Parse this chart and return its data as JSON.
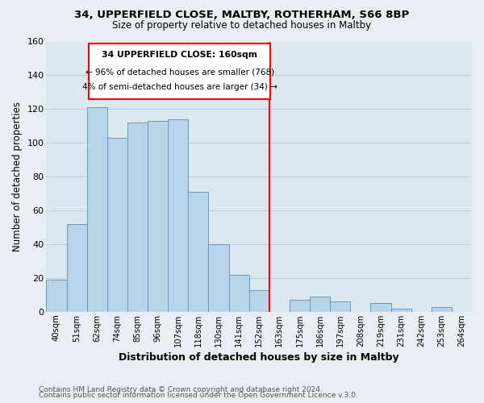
{
  "title1": "34, UPPERFIELD CLOSE, MALTBY, ROTHERHAM, S66 8BP",
  "title2": "Size of property relative to detached houses in Maltby",
  "xlabel": "Distribution of detached houses by size in Maltby",
  "ylabel": "Number of detached properties",
  "bin_labels": [
    "40sqm",
    "51sqm",
    "62sqm",
    "74sqm",
    "85sqm",
    "96sqm",
    "107sqm",
    "118sqm",
    "130sqm",
    "141sqm",
    "152sqm",
    "163sqm",
    "175sqm",
    "186sqm",
    "197sqm",
    "208sqm",
    "219sqm",
    "231sqm",
    "242sqm",
    "253sqm",
    "264sqm"
  ],
  "bar_heights": [
    19,
    52,
    121,
    103,
    112,
    113,
    114,
    71,
    40,
    22,
    13,
    0,
    7,
    9,
    6,
    0,
    5,
    2,
    0,
    3,
    0
  ],
  "bar_color": "#b8d4e8",
  "bar_edge_color": "#6699bb",
  "vline_idx": 11,
  "vline_color": "red",
  "annotation_title": "34 UPPERFIELD CLOSE: 160sqm",
  "annotation_line1": "← 96% of detached houses are smaller (768)",
  "annotation_line2": "4% of semi-detached houses are larger (34) →",
  "ylim": [
    0,
    160
  ],
  "yticks": [
    0,
    20,
    40,
    60,
    80,
    100,
    120,
    140,
    160
  ],
  "footer1": "Contains HM Land Registry data © Crown copyright and database right 2024.",
  "footer2": "Contains public sector information licensed under the Open Government Licence v.3.0.",
  "bg_color": "#e8eef4",
  "plot_bg_color": "#dce8f0",
  "grid_color": "#c0ccd8"
}
